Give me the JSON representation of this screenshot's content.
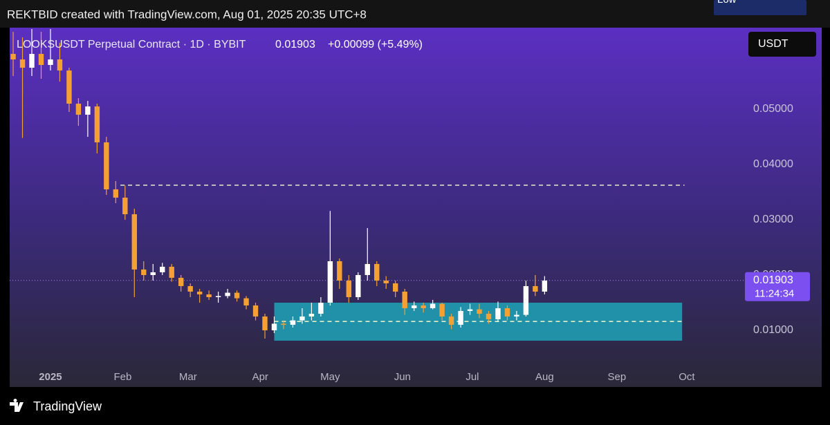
{
  "header": {
    "credit": "REKTBID created with TradingView.com, Aug 01, 2025 20:35 UTC+8",
    "currency": "USDT",
    "brand": "TradingView"
  },
  "chart_data": {
    "type": "candlestick",
    "title": "LOOKSUSDT Perpetual Contract · 1D · BYBIT",
    "last": {
      "value": 0.01903,
      "label": "0.01903"
    },
    "change": "+0.00099 (+5.49%)",
    "countdown": "11:24:34",
    "low_label": "Low",
    "low": [
      0.056,
      0.0448,
      0.056,
      0.0555,
      0.057,
      0.055,
      0.0495,
      0.047,
      0.045,
      0.042,
      0.0345,
      0.033,
      0.03,
      0.016,
      0.019,
      0.019,
      0.02,
      0.0188,
      0.017,
      0.016,
      0.015,
      0.0155,
      0.015,
      0.0158,
      0.0152,
      0.0138,
      0.0118,
      0.0085,
      0.0095,
      0.0102,
      0.0105,
      0.0112,
      0.0118,
      0.0125,
      0.0145,
      0.0175,
      0.015,
      0.0155,
      0.019,
      0.018,
      0.0175,
      0.016,
      0.0128,
      0.0135,
      0.0132,
      0.0138,
      0.0118,
      0.0102,
      0.0105,
      0.0128,
      0.0122,
      0.0112,
      0.0115,
      0.0118,
      0.0118,
      0.0125,
      0.0162,
      0.0165
    ],
    "up_color": "#ffffff",
    "down_color": "#f5a033",
    "xlim": [
      -17.5,
      284
    ],
    "xticks": [
      {
        "value": 0,
        "label": "2025"
      },
      {
        "value": 31,
        "label": "Feb"
      },
      {
        "value": 59,
        "label": "Mar"
      },
      {
        "value": 90,
        "label": "Apr"
      },
      {
        "value": 120,
        "label": "May"
      },
      {
        "value": 151,
        "label": "Jun"
      },
      {
        "value": 181,
        "label": "Jul"
      },
      {
        "value": 212,
        "label": "Aug"
      },
      {
        "value": 243,
        "label": "Sep"
      },
      {
        "value": 273,
        "label": "Oct"
      }
    ],
    "ylim": [
      -0.00025,
      0.06475
    ],
    "yticks": [
      {
        "value": 0.01,
        "label": "0.01000"
      },
      {
        "value": 0.02,
        "label": "0.02000"
      },
      {
        "value": 0.03,
        "label": "0.03000"
      },
      {
        "value": 0.04,
        "label": "0.04000"
      },
      {
        "value": 0.05,
        "label": "0.05000"
      }
    ],
    "x": [
      -16,
      -12,
      -8,
      -4,
      0,
      4,
      8,
      12,
      16,
      20,
      24,
      28,
      32,
      36,
      40,
      44,
      48,
      52,
      56,
      60,
      64,
      68,
      72,
      76,
      80,
      84,
      88,
      92,
      96,
      100,
      104,
      108,
      112,
      116,
      120,
      124,
      128,
      132,
      136,
      140,
      144,
      148,
      152,
      156,
      160,
      164,
      168,
      172,
      176,
      180,
      184,
      188,
      192,
      196,
      200,
      204,
      208,
      212
    ],
    "open": [
      0.06,
      0.059,
      0.0575,
      0.06,
      0.058,
      0.059,
      0.057,
      0.051,
      0.049,
      0.0505,
      0.044,
      0.0355,
      0.034,
      0.031,
      0.021,
      0.02,
      0.0205,
      0.0215,
      0.0195,
      0.018,
      0.017,
      0.0165,
      0.016,
      0.0162,
      0.0168,
      0.0158,
      0.0145,
      0.0125,
      0.01,
      0.0112,
      0.011,
      0.0118,
      0.0125,
      0.013,
      0.015,
      0.0225,
      0.019,
      0.016,
      0.02,
      0.022,
      0.019,
      0.0185,
      0.017,
      0.014,
      0.0145,
      0.014,
      0.0148,
      0.0125,
      0.011,
      0.0135,
      0.0138,
      0.013,
      0.012,
      0.014,
      0.0125,
      0.0128,
      0.018,
      0.017
    ],
    "high": [
      0.064,
      0.063,
      0.0645,
      0.064,
      0.0645,
      0.062,
      0.0575,
      0.052,
      0.0515,
      0.051,
      0.045,
      0.037,
      0.0362,
      0.032,
      0.0225,
      0.022,
      0.0222,
      0.022,
      0.02,
      0.0185,
      0.0175,
      0.0172,
      0.017,
      0.0175,
      0.0172,
      0.0162,
      0.015,
      0.013,
      0.0125,
      0.0118,
      0.0125,
      0.014,
      0.015,
      0.016,
      0.0316,
      0.023,
      0.02,
      0.0205,
      0.0285,
      0.0225,
      0.0198,
      0.019,
      0.0175,
      0.0152,
      0.015,
      0.0155,
      0.015,
      0.013,
      0.0142,
      0.0148,
      0.0148,
      0.0135,
      0.0152,
      0.0145,
      0.0135,
      0.019,
      0.02,
      0.0198
    ],
    "close": [
      0.059,
      0.0575,
      0.06,
      0.058,
      0.059,
      0.057,
      0.051,
      0.049,
      0.0505,
      0.044,
      0.0355,
      0.034,
      0.031,
      0.021,
      0.02,
      0.0205,
      0.0215,
      0.0195,
      0.018,
      0.017,
      0.0165,
      0.016,
      0.0162,
      0.0168,
      0.0158,
      0.0145,
      0.0125,
      0.01,
      0.0112,
      0.011,
      0.0118,
      0.0125,
      0.013,
      0.015,
      0.0225,
      0.019,
      0.016,
      0.02,
      0.022,
      0.019,
      0.0185,
      0.017,
      0.014,
      0.0145,
      0.014,
      0.0148,
      0.0125,
      0.011,
      0.0135,
      0.0138,
      0.013,
      0.012,
      0.014,
      0.0125,
      0.0128,
      0.018,
      0.017,
      0.019
    ],
    "resistance": {
      "x": [
        30,
        272
      ],
      "value": 0.03625,
      "color": "#e8f0c8"
    },
    "range_box": {
      "x": [
        96,
        271
      ],
      "low": 0.008125,
      "high": 0.015,
      "color": "#1fa3b8"
    },
    "support": {
      "x": [
        96,
        271
      ],
      "value": 0.0116,
      "color": "#e8f0c8"
    }
  }
}
